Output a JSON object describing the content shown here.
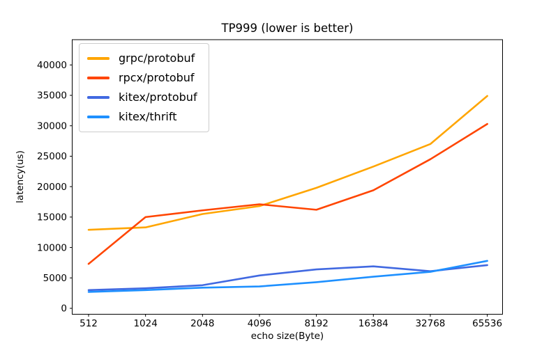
{
  "chart_data": {
    "type": "line",
    "title": "TP999 (lower is better)",
    "xlabel": "echo size(Byte)",
    "ylabel": "latency(us)",
    "categories": [
      "512",
      "1024",
      "2048",
      "4096",
      "8192",
      "16384",
      "32768",
      "65536"
    ],
    "series": [
      {
        "name": "grpc/protobuf",
        "color": "#FFA500",
        "values": [
          12900,
          13300,
          15500,
          16800,
          19800,
          23300,
          27000,
          34900
        ]
      },
      {
        "name": "rpcx/protobuf",
        "color": "#FF4500",
        "values": [
          7300,
          15000,
          16100,
          17100,
          16200,
          19400,
          24500,
          30300
        ]
      },
      {
        "name": "kitex/protobuf",
        "color": "#4169E1",
        "values": [
          3000,
          3300,
          3800,
          5400,
          6400,
          6900,
          6100,
          7100
        ]
      },
      {
        "name": "kitex/thrift",
        "color": "#1E90FF",
        "values": [
          2700,
          3000,
          3400,
          3600,
          4300,
          5200,
          6000,
          7800
        ]
      }
    ],
    "yticks": [
      0,
      5000,
      10000,
      15000,
      20000,
      25000,
      30000,
      35000,
      40000
    ],
    "ylim": [
      0,
      44000
    ],
    "grid": false,
    "legend_position": "upper left",
    "axis_color": "#000000",
    "background_color": "#ffffff"
  }
}
